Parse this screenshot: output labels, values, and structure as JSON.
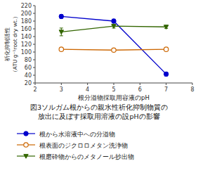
{
  "chart_data": {
    "type": "line",
    "title": "図3ソルガム根からの親水性祈化抑制物質の\n放出に及ぼす採取用溶液の設pHの影響",
    "xlabel": "根分溢物採取用容液のpH",
    "ylabel": "祈化抑制活性\n（ATU g⁻¹root dry wt.）",
    "x": [
      3,
      5,
      7
    ],
    "series": [
      {
        "name": "根から水溶液中への分溢物",
        "color": "#0000cc",
        "marker": "circle",
        "values": [
          192,
          180,
          43
        ],
        "errors": [
          5,
          5,
          5
        ]
      },
      {
        "name": "根表面のジクロロメタン洗浄物",
        "color": "#cc6600",
        "marker": "circle-open",
        "values": [
          107,
          105,
          107
        ],
        "errors": [
          3,
          3,
          3
        ]
      },
      {
        "name": "根磨砕物からのメタノール抄出物",
        "color": "#336600",
        "marker": "triangle-down",
        "values": [
          152,
          167,
          165
        ],
        "errors": [
          10,
          5,
          4
        ]
      }
    ],
    "xlim": [
      2,
      8
    ],
    "ylim": [
      20,
      220
    ],
    "xticks": [
      2,
      3,
      4,
      5,
      6,
      7,
      8
    ],
    "yticks": [
      20,
      40,
      60,
      80,
      100,
      120,
      140,
      160,
      180,
      200,
      220
    ],
    "grid": false,
    "legend": "bottom"
  }
}
